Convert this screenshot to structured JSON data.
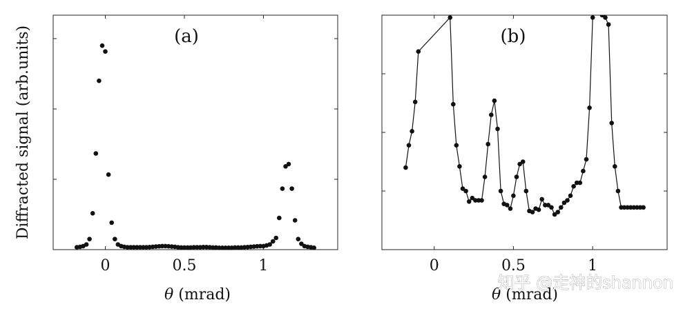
{
  "chart_data": [
    {
      "type": "scatter",
      "panel_label": "(a)",
      "xlabel_symbol": "θ",
      "xlabel_unit": "(mrad)",
      "ylabel": "Diffracted signal (arb.units)",
      "xlim": [
        -0.33,
        1.47
      ],
      "ylim": [
        0,
        1.0
      ],
      "x_ticks": [
        0,
        0.5,
        1
      ],
      "x_tick_labels": [
        "0",
        "0.5",
        "1"
      ],
      "y_ticks": [
        0.3,
        0.6,
        0.9
      ],
      "grid": false,
      "series": [
        {
          "x": [
            -0.18,
            -0.16,
            -0.14,
            -0.12,
            -0.1,
            -0.08,
            -0.06,
            -0.04,
            -0.02,
            0.0,
            0.02,
            0.04,
            0.06,
            0.08,
            0.1,
            0.12,
            0.14,
            0.16,
            0.18,
            0.2,
            0.22,
            0.24,
            0.26,
            0.28,
            0.3,
            0.32,
            0.34,
            0.36,
            0.38,
            0.4,
            0.42,
            0.44,
            0.46,
            0.48,
            0.5,
            0.52,
            0.54,
            0.56,
            0.58,
            0.6,
            0.62,
            0.64,
            0.66,
            0.68,
            0.7,
            0.72,
            0.74,
            0.76,
            0.78,
            0.8,
            0.82,
            0.84,
            0.86,
            0.88,
            0.9,
            0.92,
            0.94,
            0.96,
            0.98,
            1.0,
            1.02,
            1.04,
            1.06,
            1.08,
            1.1,
            1.12,
            1.14,
            1.16,
            1.18,
            1.2,
            1.22,
            1.24,
            1.26,
            1.28,
            1.3,
            1.32
          ],
          "y": [
            0.01,
            0.012,
            0.015,
            0.022,
            0.045,
            0.155,
            0.41,
            0.72,
            0.87,
            0.845,
            0.32,
            0.115,
            0.045,
            0.022,
            0.015,
            0.012,
            0.01,
            0.01,
            0.01,
            0.01,
            0.01,
            0.01,
            0.01,
            0.011,
            0.012,
            0.013,
            0.014,
            0.015,
            0.015,
            0.014,
            0.013,
            0.012,
            0.01,
            0.009,
            0.009,
            0.009,
            0.009,
            0.01,
            0.01,
            0.01,
            0.011,
            0.011,
            0.01,
            0.009,
            0.009,
            0.008,
            0.008,
            0.008,
            0.008,
            0.008,
            0.009,
            0.009,
            0.009,
            0.01,
            0.011,
            0.012,
            0.013,
            0.014,
            0.015,
            0.015,
            0.018,
            0.022,
            0.035,
            0.05,
            0.135,
            0.26,
            0.355,
            0.365,
            0.26,
            0.125,
            0.045,
            0.025,
            0.015,
            0.012,
            0.01,
            0.008
          ]
        }
      ]
    },
    {
      "type": "line",
      "panel_label": "(b)",
      "xlabel_symbol": "θ",
      "xlabel_unit": "(mrad)",
      "ylabel": "",
      "xlim": [
        -0.33,
        1.47
      ],
      "ylim": [
        0,
        1.0
      ],
      "x_ticks": [
        0,
        0.5,
        1
      ],
      "x_tick_labels": [
        "0",
        "0.5",
        "1"
      ],
      "y_ticks": [
        0.25,
        0.5,
        0.75
      ],
      "grid": false,
      "series": [
        {
          "x": [
            -0.18,
            -0.16,
            -0.14,
            -0.12,
            -0.1,
            0.1,
            0.12,
            0.14,
            0.16,
            0.18,
            0.2,
            0.22,
            0.24,
            0.26,
            0.28,
            0.3,
            0.32,
            0.34,
            0.36,
            0.38,
            0.4,
            0.42,
            0.44,
            0.46,
            0.48,
            0.5,
            0.52,
            0.54,
            0.56,
            0.58,
            0.6,
            0.62,
            0.64,
            0.66,
            0.68,
            0.7,
            0.72,
            0.74,
            0.76,
            0.78,
            0.8,
            0.82,
            0.84,
            0.86,
            0.88,
            0.9,
            0.92,
            0.94,
            0.96,
            0.98,
            1.0,
            1.02,
            1.04,
            1.06,
            1.08,
            1.1,
            1.12,
            1.14,
            1.16,
            1.18,
            1.2,
            1.22,
            1.24,
            1.26,
            1.28,
            1.3,
            1.32
          ],
          "y": [
            0.35,
            0.445,
            0.505,
            0.63,
            0.845,
            0.99,
            0.62,
            0.445,
            0.355,
            0.26,
            0.25,
            0.205,
            0.22,
            0.21,
            0.21,
            0.21,
            0.31,
            0.45,
            0.575,
            0.635,
            0.515,
            0.25,
            0.195,
            0.19,
            0.175,
            0.23,
            0.31,
            0.365,
            0.375,
            0.25,
            0.165,
            0.16,
            0.175,
            0.17,
            0.215,
            0.19,
            0.19,
            0.18,
            0.15,
            0.16,
            0.18,
            0.2,
            0.21,
            0.23,
            0.27,
            0.285,
            0.285,
            0.335,
            0.385,
            0.605,
            0.99,
            1.06,
            1.05,
            1.0,
            0.99,
            0.96,
            0.54,
            0.355,
            0.25,
            0.18,
            0.18,
            0.18,
            0.18,
            0.18,
            0.18,
            0.18,
            0.18
          ]
        }
      ]
    }
  ],
  "watermark": "知乎 @走神的shannon"
}
